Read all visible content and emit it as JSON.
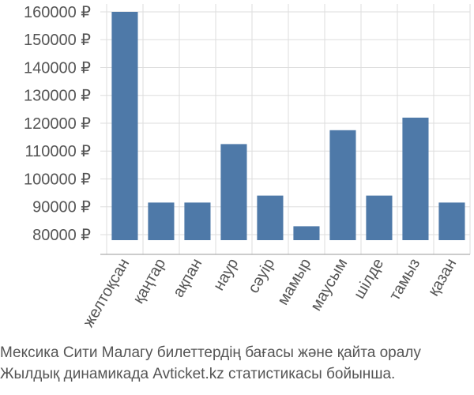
{
  "chart_data": {
    "type": "bar",
    "categories": [
      "желтоқсан",
      "қаңтар",
      "ақпан",
      "наур",
      "сәуір",
      "мамыр",
      "маусым",
      "шілде",
      "тамыз",
      "қазан"
    ],
    "values": [
      160000,
      91500,
      91500,
      112500,
      94000,
      83000,
      117500,
      94000,
      122000,
      91500
    ],
    "ylim": [
      78000,
      160000
    ],
    "yticks": [
      80000,
      90000,
      100000,
      110000,
      120000,
      130000,
      140000,
      150000,
      160000
    ],
    "currency": "₽",
    "bar_color": "#4e79a8",
    "grid": true,
    "title": "",
    "xlabel": "",
    "ylabel": ""
  },
  "caption": {
    "line1": "Мексика Сити Малагу билеттердің бағасы және қайта оралу",
    "line2": "Жылдық динамикада Avticket.kz статистикасы бойынша."
  }
}
